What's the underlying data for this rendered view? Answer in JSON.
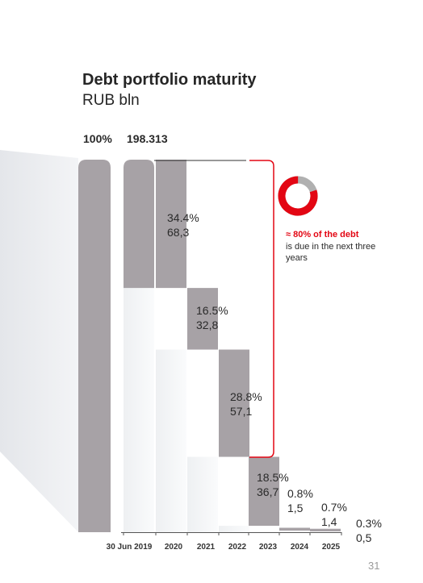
{
  "title": "Debt portfolio maturity",
  "subtitle": "RUB bln",
  "header": {
    "percent": "100%",
    "total": "198.313"
  },
  "note": {
    "headline": "≈ 80% of the debt",
    "body": "is due in the next three years"
  },
  "page_number": "31",
  "colors": {
    "bar": "#a7a2a6",
    "accent": "#e30613",
    "donut_rest": "#b0b0b0",
    "axis": "#555555"
  },
  "chart_data": {
    "type": "bar",
    "subtype": "waterfall",
    "title": "Debt portfolio maturity",
    "ylabel": "RUB bln",
    "total": {
      "category": "30 Jun 2019",
      "value": 198.313,
      "percent": "100%",
      "value_label": "198.313"
    },
    "categories": [
      "2020",
      "2021",
      "2022",
      "2023",
      "2024",
      "2025"
    ],
    "values": [
      68.3,
      32.8,
      57.1,
      36.7,
      1.5,
      1.4
    ],
    "percent_labels": [
      "34.4%",
      "16.5%",
      "28.8%",
      "18.5%",
      "0.8%",
      "0.7%"
    ],
    "value_labels": [
      "68,3",
      "32,8",
      "57,1",
      "36,7",
      "1,5",
      "1,4"
    ],
    "extra": {
      "percent_label": "0.3%",
      "value_label": "0,5",
      "value": 0.5
    },
    "x_tick_labels": [
      "30 Jun 2019",
      "2020",
      "2021",
      "2022",
      "2023",
      "2024",
      "2025"
    ],
    "share_due_3y": 80,
    "grid": false,
    "legend": "none"
  }
}
